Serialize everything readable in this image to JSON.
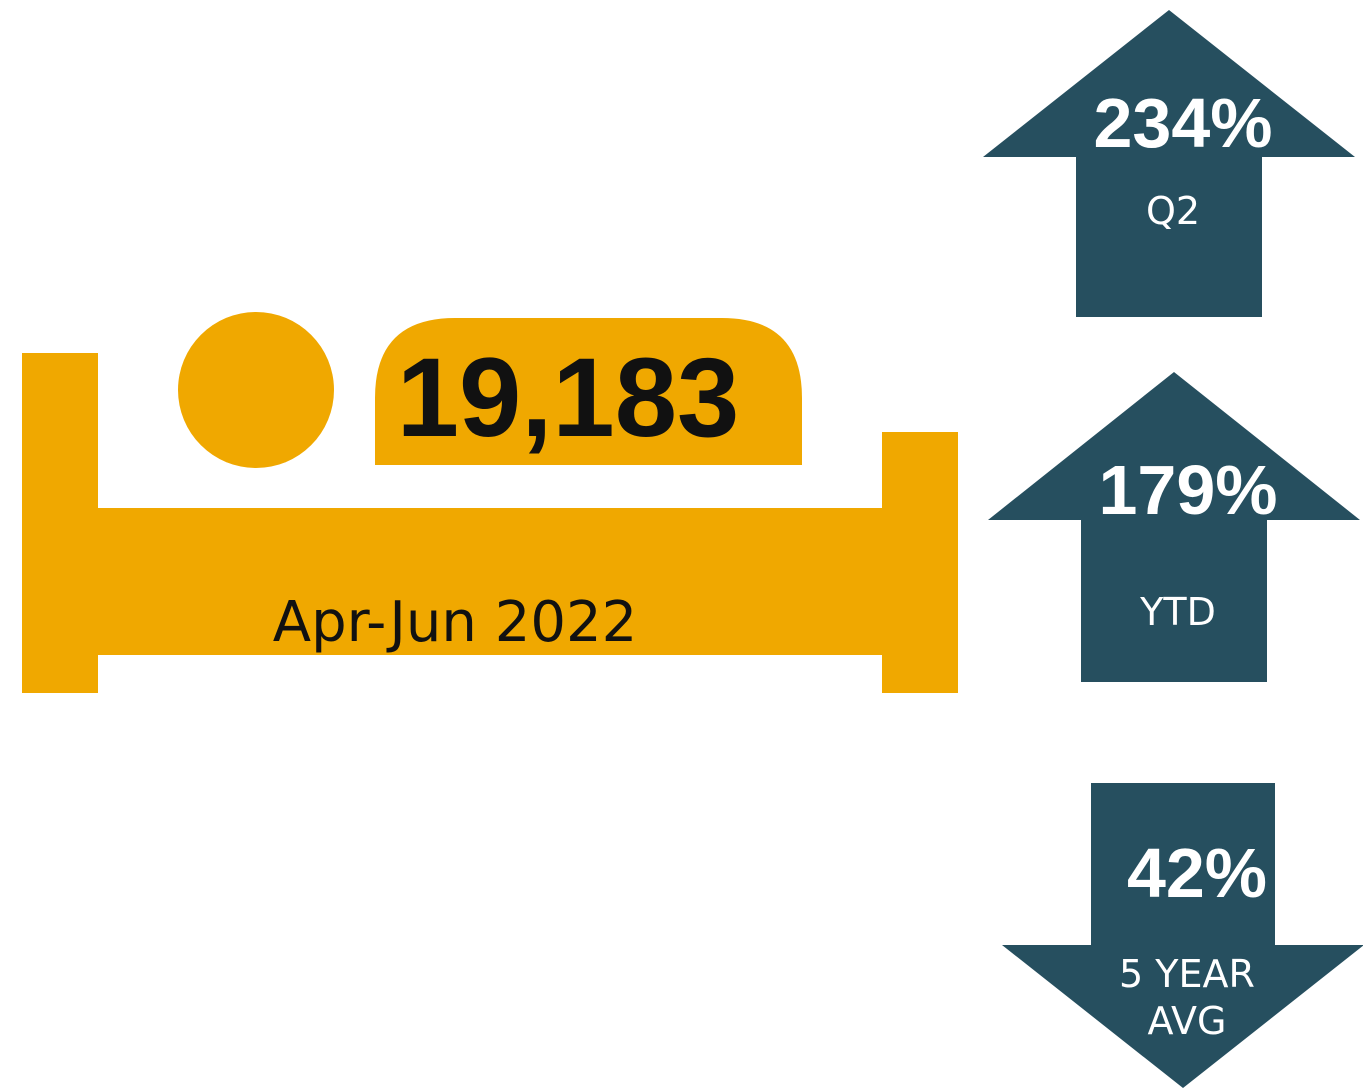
{
  "total": {
    "value": "19,183",
    "period": "Apr-Jun 2022",
    "color": "#f0a800"
  },
  "indicators": [
    {
      "value": "234%",
      "label": "Q2",
      "direction": "up",
      "color": "#264f5f"
    },
    {
      "value": "179%",
      "label": "YTD",
      "direction": "up",
      "color": "#264f5f"
    },
    {
      "value": "42%",
      "label": "5 YEAR AVG",
      "direction": "down",
      "color": "#264f5f"
    }
  ]
}
